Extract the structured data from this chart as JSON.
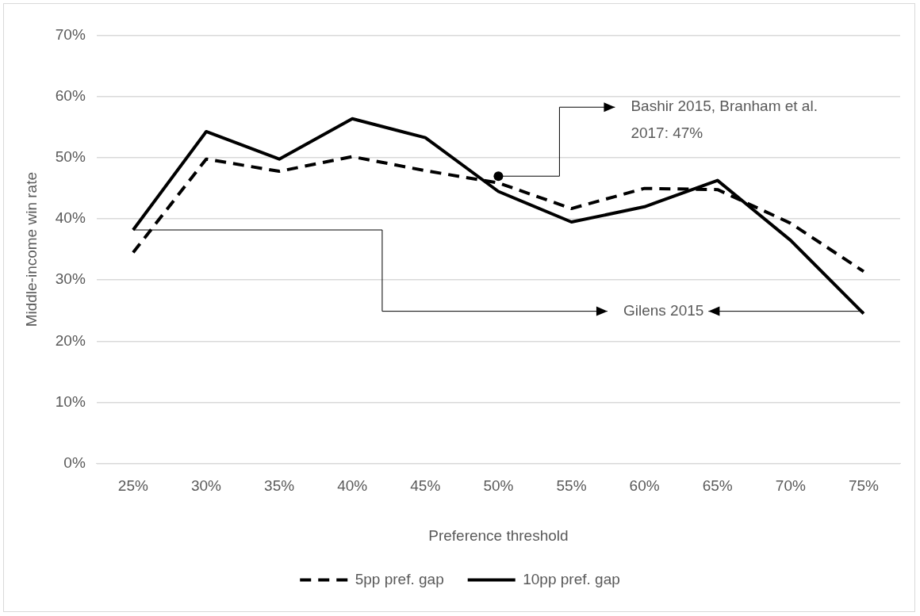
{
  "chart_data": {
    "type": "line",
    "xlabel": "Preference threshold",
    "ylabel": "Middle-income win rate",
    "categories": [
      "25%",
      "30%",
      "35%",
      "40%",
      "45%",
      "50%",
      "55%",
      "60%",
      "65%",
      "70%",
      "75%"
    ],
    "series": [
      {
        "name": "5pp pref. gap",
        "color": "#000000",
        "line_style": "dashed",
        "values": [
          34.5,
          49.8,
          47.8,
          50.2,
          47.9,
          45.9,
          41.7,
          45,
          44.8,
          39.3,
          31.4
        ]
      },
      {
        "name": "10pp pref. gap",
        "color": "#000000",
        "line_style": "solid",
        "values": [
          38.2,
          54.3,
          49.8,
          56.4,
          53.3,
          44.5,
          39.5,
          42,
          46.3,
          36.5,
          24.5
        ]
      }
    ],
    "ylim": [
      0,
      70
    ],
    "yticks": [
      {
        "value": 0,
        "label": "0%"
      },
      {
        "value": 10,
        "label": "10%"
      },
      {
        "value": 20,
        "label": "20%"
      },
      {
        "value": 30,
        "label": "30%"
      },
      {
        "value": 40,
        "label": "40%"
      },
      {
        "value": 50,
        "label": "50%"
      },
      {
        "value": 60,
        "label": "60%"
      },
      {
        "value": 70,
        "label": "70%"
      }
    ],
    "grid": "y",
    "legend": "bottom",
    "marker": "none",
    "annotations": [
      {
        "text": "Bashir 2015, Branham et al. 2017: 47%",
        "x": "50%",
        "y": 47
      },
      {
        "text": "Gilens 2015",
        "x": "75%",
        "y": 24.5
      }
    ]
  }
}
